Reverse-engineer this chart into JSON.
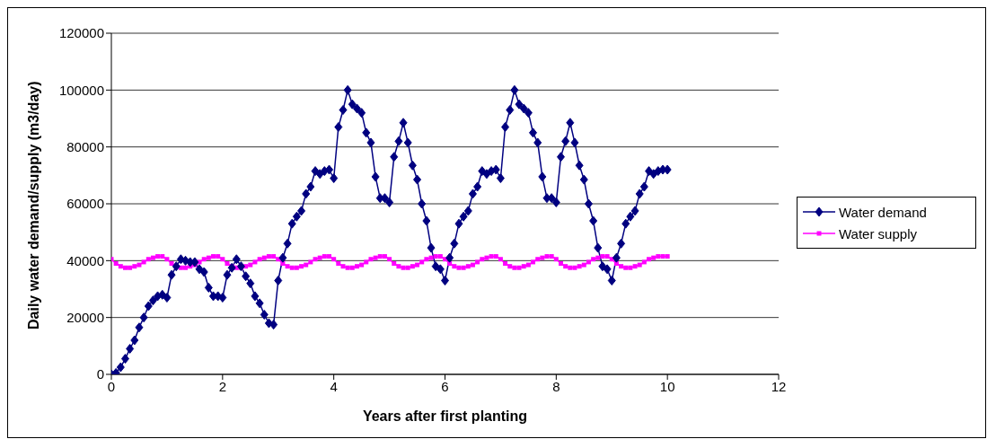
{
  "chart_data": {
    "type": "line",
    "xlabel": "Years after first planting",
    "ylabel": "Daily water demand/supply (m3/day)",
    "x": [
      0,
      0.083,
      0.167,
      0.25,
      0.333,
      0.417,
      0.5,
      0.583,
      0.667,
      0.75,
      0.833,
      0.917,
      1,
      1.083,
      1.167,
      1.25,
      1.333,
      1.417,
      1.5,
      1.583,
      1.667,
      1.75,
      1.833,
      1.917,
      2,
      2.083,
      2.167,
      2.25,
      2.333,
      2.417,
      2.5,
      2.583,
      2.667,
      2.75,
      2.833,
      2.917,
      3,
      3.083,
      3.167,
      3.25,
      3.333,
      3.417,
      3.5,
      3.583,
      3.667,
      3.75,
      3.833,
      3.917,
      4,
      4.083,
      4.167,
      4.25,
      4.333,
      4.417,
      4.5,
      4.583,
      4.667,
      4.75,
      4.833,
      4.917,
      5,
      5.083,
      5.167,
      5.25,
      5.333,
      5.417,
      5.5,
      5.583,
      5.667,
      5.75,
      5.833,
      5.917,
      6,
      6.083,
      6.167,
      6.25,
      6.333,
      6.417,
      6.5,
      6.583,
      6.667,
      6.75,
      6.833,
      6.917,
      7,
      7.083,
      7.167,
      7.25,
      7.333,
      7.417,
      7.5,
      7.583,
      7.667,
      7.75,
      7.833,
      7.917,
      8,
      8.083,
      8.167,
      8.25,
      8.333,
      8.417,
      8.5,
      8.583,
      8.667,
      8.75,
      8.833,
      8.917,
      9,
      9.083,
      9.167,
      9.25,
      9.333,
      9.417,
      9.5,
      9.583,
      9.667,
      9.75,
      9.833,
      9.917,
      10
    ],
    "series": [
      {
        "name": "Water demand",
        "color": "#000080",
        "marker": "diamond",
        "values": [
          0,
          500,
          2500,
          5500,
          9000,
          12000,
          16500,
          20000,
          24000,
          26000,
          27500,
          28000,
          27000,
          35000,
          38000,
          40500,
          40000,
          39500,
          39500,
          37000,
          36000,
          30500,
          27500,
          27500,
          27000,
          35000,
          37500,
          40500,
          38000,
          34500,
          32000,
          27500,
          25000,
          21000,
          18000,
          17500,
          33000,
          41000,
          46000,
          53000,
          55500,
          57500,
          63500,
          66000,
          71500,
          70500,
          71500,
          72000,
          69000,
          87000,
          93000,
          100000,
          95000,
          93500,
          92000,
          85000,
          81500,
          69500,
          62000,
          62000,
          60500,
          76500,
          82000,
          88500,
          81500,
          73500,
          68500,
          60000,
          54000,
          44500,
          38000,
          37000,
          33000,
          41000,
          46000,
          53000,
          55500,
          57500,
          63500,
          66000,
          71500,
          70500,
          71500,
          72000,
          69000,
          87000,
          93000,
          100000,
          95000,
          93500,
          92000,
          85000,
          81500,
          69500,
          62000,
          62000,
          60500,
          76500,
          82000,
          88500,
          81500,
          73500,
          68500,
          60000,
          54000,
          44500,
          38000,
          37000,
          33000,
          41000,
          46000,
          53000,
          55500,
          57500,
          63500,
          66000,
          71500,
          70500,
          71500,
          72000,
          72000
        ]
      },
      {
        "name": "Water supply",
        "color": "#ff00ff",
        "marker": "square",
        "values": [
          40500,
          39000,
          38000,
          37500,
          37500,
          38000,
          38500,
          39500,
          40500,
          41000,
          41500,
          41500,
          40500,
          39000,
          38000,
          37500,
          37500,
          38000,
          38500,
          39500,
          40500,
          41000,
          41500,
          41500,
          40500,
          39000,
          38000,
          37500,
          37500,
          38000,
          38500,
          39500,
          40500,
          41000,
          41500,
          41500,
          40500,
          39000,
          38000,
          37500,
          37500,
          38000,
          38500,
          39500,
          40500,
          41000,
          41500,
          41500,
          40500,
          39000,
          38000,
          37500,
          37500,
          38000,
          38500,
          39500,
          40500,
          41000,
          41500,
          41500,
          40500,
          39000,
          38000,
          37500,
          37500,
          38000,
          38500,
          39500,
          40500,
          41000,
          41500,
          41500,
          40500,
          39000,
          38000,
          37500,
          37500,
          38000,
          38500,
          39500,
          40500,
          41000,
          41500,
          41500,
          40500,
          39000,
          38000,
          37500,
          37500,
          38000,
          38500,
          39500,
          40500,
          41000,
          41500,
          41500,
          40500,
          39000,
          38000,
          37500,
          37500,
          38000,
          38500,
          39500,
          40500,
          41000,
          41500,
          41500,
          40500,
          39000,
          38000,
          37500,
          37500,
          38000,
          38500,
          39500,
          40500,
          41000,
          41500,
          41500,
          41500
        ]
      }
    ],
    "xlim": [
      0,
      12
    ],
    "xticks": [
      0,
      2,
      4,
      6,
      8,
      10,
      12
    ],
    "ylim": [
      0,
      120000
    ],
    "yticks": [
      0,
      20000,
      40000,
      60000,
      80000,
      100000,
      120000
    ],
    "grid": "y",
    "legend": "right"
  }
}
